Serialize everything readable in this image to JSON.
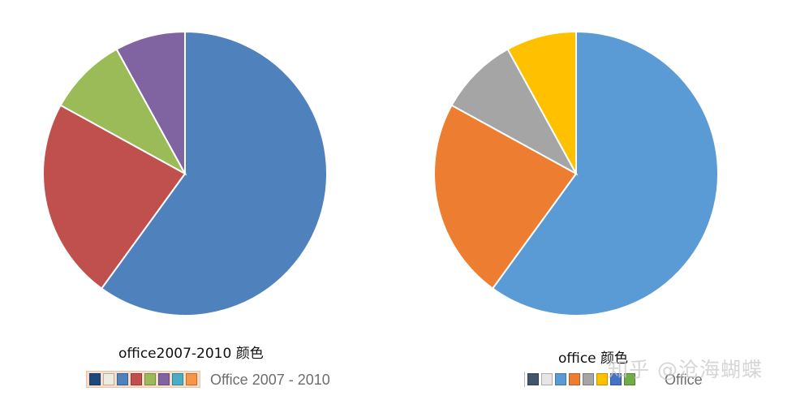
{
  "chart_data": [
    {
      "type": "pie",
      "title": "office2007-2010 颜色",
      "values": [
        60,
        23,
        9,
        8
      ],
      "colors": [
        "#4f81bd",
        "#c0504d",
        "#9bbb59",
        "#8064a2"
      ],
      "start_angle_deg": 0,
      "direction": "clockwise",
      "legend": false
    },
    {
      "type": "pie",
      "title": "office 颜色",
      "values": [
        60,
        23,
        9,
        8
      ],
      "colors": [
        "#5b9bd5",
        "#ed7d31",
        "#a5a5a5",
        "#ffc000"
      ],
      "start_angle_deg": 0,
      "direction": "clockwise",
      "legend": false
    }
  ],
  "palettes": [
    {
      "name": "Office 2007 - 2010",
      "swatches": [
        "#1f497d",
        "#eeece1",
        "#4f81bd",
        "#c0504d",
        "#9bbb59",
        "#8064a2",
        "#4bacc6",
        "#f79646"
      ]
    },
    {
      "name": "Office",
      "swatches": [
        "#44546a",
        "#e7e6e6",
        "#5b9bd5",
        "#ed7d31",
        "#a5a5a5",
        "#ffc000",
        "#4472c4",
        "#70ad47"
      ]
    }
  ],
  "watermark": "知乎 @沧海蝴蝶"
}
